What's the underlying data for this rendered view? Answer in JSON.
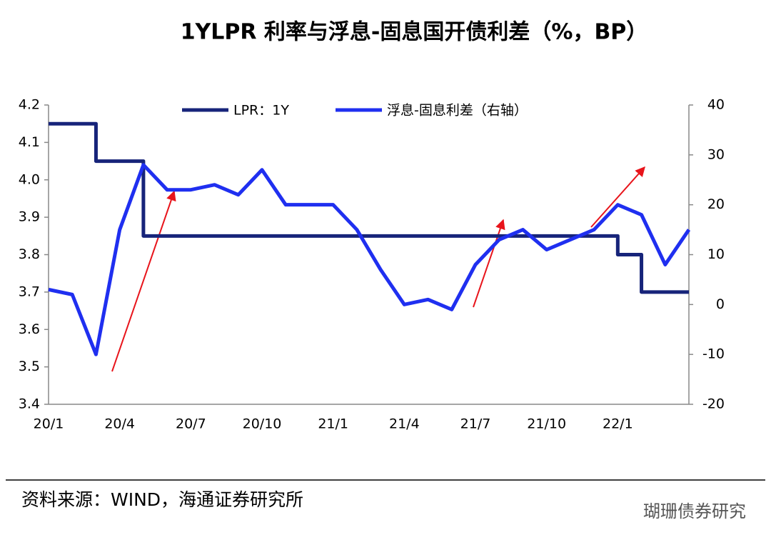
{
  "chart_data": {
    "type": "line",
    "title": "1YLPR 利率与浮息-固息国开债利差（%，BP）",
    "source": "资料来源：WIND，海通证券研究所",
    "watermark": "瑚珊债券研究",
    "categories": [
      "20/1",
      null,
      null,
      "20/4",
      null,
      null,
      "20/7",
      null,
      null,
      "20/10",
      null,
      null,
      "21/1",
      null,
      null,
      "21/4",
      null,
      null,
      "21/7",
      null,
      null,
      "21/10",
      null,
      null,
      "22/1",
      null,
      null,
      null
    ],
    "series": [
      {
        "name": "LPR：1Y",
        "color": "#17247a",
        "axis": "y",
        "values": [
          4.15,
          4.15,
          4.05,
          4.05,
          3.85,
          3.85,
          3.85,
          3.85,
          3.85,
          3.85,
          3.85,
          3.85,
          3.85,
          3.85,
          3.85,
          3.85,
          3.85,
          3.85,
          3.85,
          3.85,
          3.85,
          3.85,
          3.85,
          3.85,
          3.8,
          3.7,
          3.7,
          3.7
        ]
      },
      {
        "name": "浮息-固息利差（右轴）",
        "color": "#1f2ff0",
        "axis": "y2",
        "values": [
          3,
          2,
          -10,
          15,
          28,
          23,
          23,
          24,
          22,
          27,
          20,
          20,
          20,
          15,
          7,
          0,
          1,
          -1,
          8,
          13,
          15,
          11,
          13,
          15,
          20,
          18,
          8,
          15
        ]
      }
    ],
    "ylim": [
      3.4,
      4.2
    ],
    "yticks": [
      3.4,
      3.5,
      3.6,
      3.7,
      3.8,
      3.9,
      {
        "value": 4,
        "label": "4.0"
      },
      4.1,
      4.2
    ],
    "y2lim": [
      -20,
      40
    ],
    "y2ticks": [
      -20,
      -10,
      0,
      10,
      20,
      30,
      40
    ],
    "legend": "top"
  }
}
